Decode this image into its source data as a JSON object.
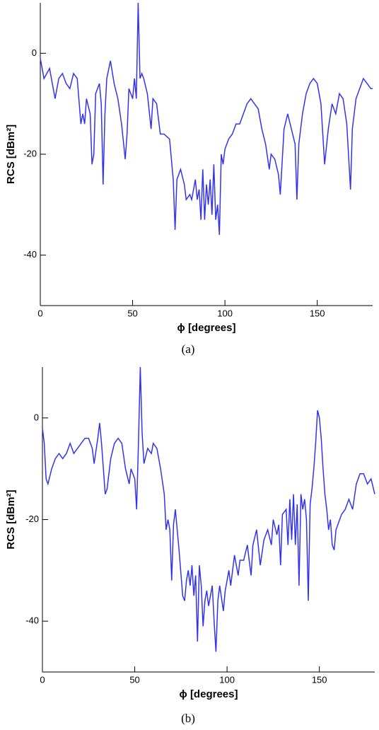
{
  "chart_data": [
    {
      "type": "line",
      "caption": "(a)",
      "xlabel": "ϕ [degrees]",
      "ylabel": "RCS [dBm²]",
      "xlim": [
        0,
        180
      ],
      "xticks": [
        0,
        50,
        100,
        150
      ],
      "ylim": [
        -50,
        10
      ],
      "yticks": [
        -40,
        -20,
        0
      ],
      "color": "#3333ee",
      "x": [
        0,
        2,
        5,
        8,
        10,
        12,
        14,
        16,
        18,
        20,
        22,
        23,
        24,
        25,
        27,
        28,
        29,
        30,
        32,
        33,
        34,
        35,
        36,
        38,
        40,
        42,
        44,
        46,
        47,
        48,
        50,
        51,
        52,
        53,
        54,
        55,
        56,
        58,
        60,
        61,
        63,
        65,
        67,
        70,
        72,
        73,
        74,
        76,
        78,
        79,
        81,
        82,
        84,
        85,
        86,
        87,
        88,
        89,
        90,
        91,
        92,
        93,
        94,
        95,
        96,
        97,
        98,
        99,
        100,
        102,
        104,
        106,
        108,
        110,
        112,
        114,
        116,
        118,
        120,
        122,
        124,
        125,
        127,
        129,
        130,
        132,
        134,
        136,
        138,
        139,
        140,
        142,
        144,
        146,
        148,
        150,
        152,
        154,
        156,
        158,
        160,
        162,
        164,
        166,
        168,
        169,
        171,
        173,
        175,
        177,
        179,
        180
      ],
      "values": [
        -1,
        -5,
        -3,
        -9,
        -5,
        -4,
        -6,
        -7,
        -4,
        -5,
        -14,
        -12,
        -14,
        -9,
        -12,
        -22,
        -20,
        -8,
        -6,
        -10,
        -26,
        -12,
        -5,
        -1.5,
        -6,
        -9,
        -14,
        -21,
        -16,
        -7,
        -9,
        -5,
        -9,
        10,
        -5,
        -4,
        -5,
        -8,
        -15,
        -9,
        -10,
        -16,
        -16,
        -17,
        -25,
        -35,
        -25,
        -23,
        -26,
        -29,
        -28,
        -29,
        -25,
        -29,
        -27,
        -33,
        -23,
        -33,
        -26,
        -30,
        -25,
        -32,
        -22,
        -33,
        -30,
        -36,
        -20,
        -22,
        -19,
        -17,
        -16,
        -14,
        -14,
        -12,
        -10,
        -9,
        -10,
        -11,
        -15,
        -18,
        -23,
        -20,
        -21,
        -24,
        -28,
        -15,
        -12,
        -15,
        -18,
        -29,
        -18,
        -12,
        -8,
        -6,
        -5,
        -6,
        -10,
        -22,
        -15,
        -10,
        -12,
        -8,
        -9,
        -14,
        -27,
        -15,
        -9,
        -7,
        -5,
        -6,
        -7,
        -7
      ]
    },
    {
      "type": "line",
      "caption": "(b)",
      "xlabel": "ϕ [degrees]",
      "ylabel": "RCS [dBm²]",
      "xlim": [
        0,
        180
      ],
      "xticks": [
        0,
        50,
        100,
        150
      ],
      "ylim": [
        -50,
        10
      ],
      "yticks": [
        -40,
        -20,
        0
      ],
      "color": "#3333ee",
      "x": [
        0,
        1,
        2,
        3,
        5,
        7,
        9,
        11,
        13,
        15,
        17,
        19,
        21,
        23,
        25,
        27,
        28,
        30,
        31,
        32,
        33,
        34,
        35,
        37,
        39,
        41,
        43,
        45,
        47,
        48,
        50,
        51,
        52,
        53,
        54,
        55,
        57,
        59,
        60,
        62,
        64,
        66,
        67,
        68,
        69,
        70,
        71,
        72,
        74,
        76,
        77,
        78,
        79,
        80,
        81,
        82,
        83,
        84,
        85,
        86,
        87,
        88,
        89,
        90,
        91,
        92,
        93,
        94,
        95,
        96,
        98,
        99,
        101,
        102,
        104,
        106,
        107,
        109,
        111,
        112,
        113,
        114,
        116,
        118,
        120,
        122,
        124,
        125,
        127,
        128,
        129,
        130,
        132,
        133,
        134,
        135,
        136,
        137,
        138,
        139,
        140,
        141,
        142,
        143,
        144,
        145,
        146,
        147,
        148,
        149,
        150,
        151,
        152,
        153,
        154,
        155,
        156,
        157,
        158,
        159,
        160,
        162,
        164,
        166,
        168,
        170,
        172,
        174,
        176,
        178,
        180
      ],
      "values": [
        -2,
        -5,
        -12,
        -13,
        -10,
        -8,
        -7,
        -8,
        -7,
        -5,
        -7,
        -6,
        -5,
        -4,
        -4,
        -6,
        -9,
        -4,
        -1,
        -5,
        -10,
        -15,
        -14,
        -8,
        -5,
        -4,
        -5,
        -10,
        -13,
        -10,
        -12,
        -18,
        -5,
        10,
        -3,
        -9,
        -6,
        -7,
        -5,
        -6,
        -10,
        -15,
        -22,
        -20,
        -22,
        -32,
        -21,
        -18,
        -26,
        -35,
        -36,
        -32,
        -30,
        -33,
        -29,
        -35,
        -31,
        -44,
        -29,
        -33,
        -41,
        -36,
        -34,
        -37,
        -35,
        -33,
        -40,
        -46,
        -36,
        -33,
        -38,
        -34,
        -30,
        -33,
        -27,
        -31,
        -28,
        -28,
        -25,
        -28,
        -31,
        -25,
        -22,
        -29,
        -24,
        -22,
        -25,
        -20,
        -23,
        -21,
        -29,
        -19,
        -18,
        -25,
        -16,
        -24,
        -15,
        -25,
        -17,
        -33,
        -15,
        -18,
        -16,
        -20,
        -36,
        -17,
        -14,
        -10,
        -5,
        1.5,
        0,
        -4,
        -10,
        -15,
        -18,
        -22,
        -20,
        -25,
        -26,
        -22,
        -21,
        -19,
        -18,
        -16,
        -18,
        -13,
        -11,
        -11,
        -13,
        -12,
        -15
      ]
    }
  ]
}
